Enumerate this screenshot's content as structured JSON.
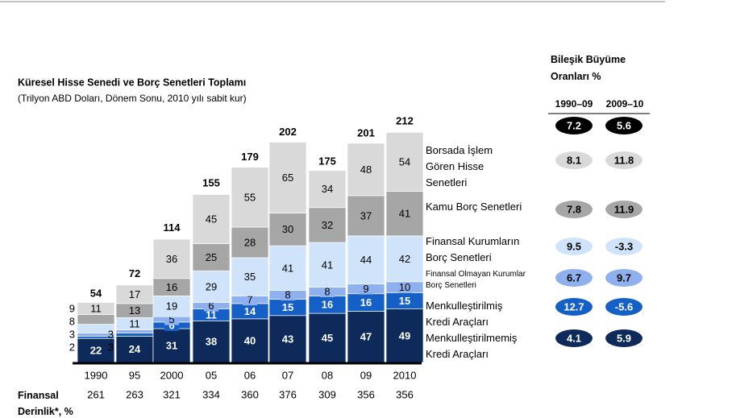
{
  "chart_data": {
    "type": "bar",
    "stacked": true,
    "title": "Küresel Hisse Senedi ve Borç Senetleri Toplamı",
    "subtitle": "(Trilyon ABD Doları, Dönem Sonu, 2010 yılı sabit kur)",
    "categories": [
      "1990",
      "95",
      "2000",
      "05",
      "06",
      "07",
      "08",
      "09",
      "2010"
    ],
    "series": [
      {
        "name": "Menkulleştirilmemiş Kredi Araçları",
        "color": "#0d2a5b",
        "values": [
          22,
          24,
          31,
          38,
          40,
          43,
          45,
          47,
          49
        ]
      },
      {
        "name": "Menkulleştirilmiş Kredi Araçları",
        "color": "#1560c6",
        "values": [
          2,
          3,
          6,
          11,
          14,
          15,
          16,
          16,
          15
        ]
      },
      {
        "name": "Finansal Olmayan Kurumlar Borç Senetleri",
        "color": "#8fb0ee",
        "values": [
          3,
          3,
          5,
          6,
          7,
          8,
          8,
          9,
          10
        ]
      },
      {
        "name": "Finansal Kurumların Borç Senetleri",
        "color": "#cfe3fa",
        "values": [
          8,
          11,
          19,
          29,
          35,
          41,
          41,
          44,
          42
        ]
      },
      {
        "name": "Kamu Borç Senetleri",
        "color": "#a6a6a6",
        "values": [
          9,
          13,
          16,
          25,
          28,
          30,
          32,
          37,
          41
        ]
      },
      {
        "name": "Borsada İşlem Gören Hisse Senetleri",
        "color": "#d9d9d9",
        "values": [
          11,
          17,
          36,
          45,
          55,
          65,
          34,
          48,
          54
        ]
      }
    ],
    "totals": [
      54,
      72,
      114,
      155,
      179,
      202,
      175,
      201,
      212
    ],
    "depth": {
      "label": "Finansal Derinlik*, %",
      "values": [
        261,
        263,
        321,
        334,
        360,
        376,
        309,
        356,
        356
      ]
    }
  },
  "growth_table": {
    "title": "Bileşik Büyüme Oranları %",
    "columns": [
      "1990–09",
      "2009–10"
    ],
    "rows": [
      [
        7.2,
        5.6
      ],
      [
        8.1,
        11.8
      ],
      [
        7.8,
        11.9
      ],
      [
        9.5,
        -3.3
      ],
      [
        6.7,
        9.7
      ],
      [
        12.7,
        -5.6
      ],
      [
        4.1,
        5.9
      ]
    ]
  }
}
